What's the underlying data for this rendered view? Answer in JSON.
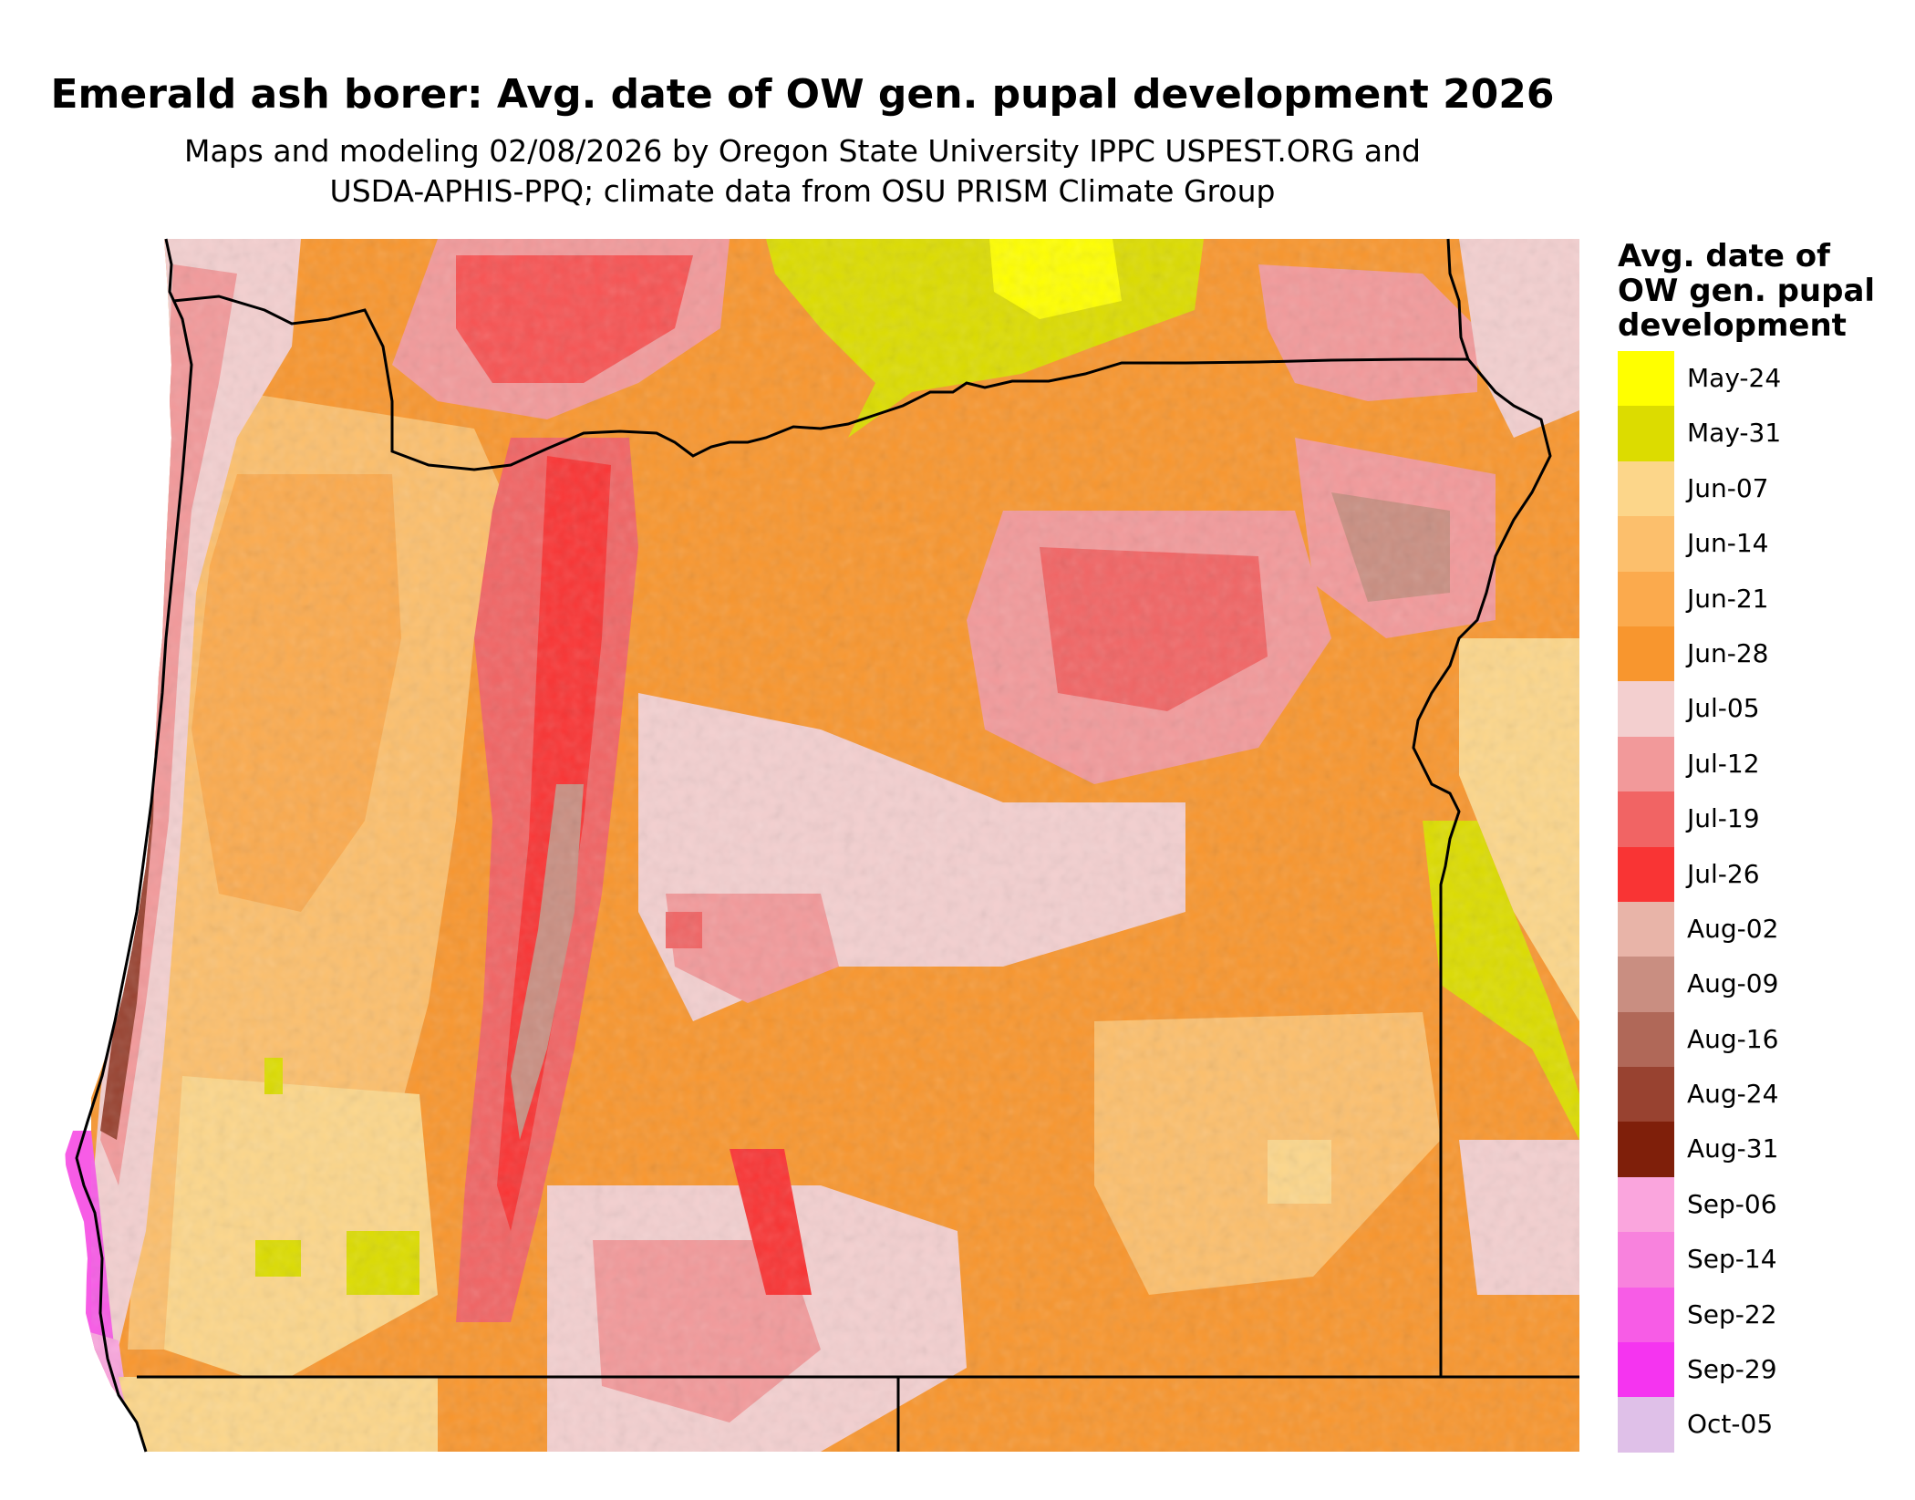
{
  "title": "Emerald ash borer: Avg. date of OW gen. pupal development 2026",
  "subtitle": {
    "line1": "Maps and modeling 02/08/2026 by Oregon State University IPPC USPEST.ORG and",
    "line2": "USDA-APHIS-PPQ; climate data from OSU PRISM Climate Group"
  },
  "legend": {
    "title_lines": [
      "Avg. date of",
      "OW gen. pupal",
      "development"
    ],
    "items": [
      {
        "label": "May-24",
        "color": "#FFFF00"
      },
      {
        "label": "May-31",
        "color": "#DCDC00"
      },
      {
        "label": "Jun-07",
        "color": "#FCD68A"
      },
      {
        "label": "Jun-14",
        "color": "#FCBF6C"
      },
      {
        "label": "Jun-21",
        "color": "#FBAA4D"
      },
      {
        "label": "Jun-28",
        "color": "#F8962E"
      },
      {
        "label": "Jul-05",
        "color": "#F3CFCF"
      },
      {
        "label": "Jul-12",
        "color": "#F2999A"
      },
      {
        "label": "Jul-19",
        "color": "#F16464"
      },
      {
        "label": "Jul-26",
        "color": "#F93434"
      },
      {
        "label": "Aug-02",
        "color": "#E8B4A8"
      },
      {
        "label": "Aug-09",
        "color": "#C98E81"
      },
      {
        "label": "Aug-16",
        "color": "#B06858"
      },
      {
        "label": "Aug-24",
        "color": "#984230"
      },
      {
        "label": "Aug-31",
        "color": "#7F1F0A"
      },
      {
        "label": "Sep-06",
        "color": "#FAA5DD"
      },
      {
        "label": "Sep-14",
        "color": "#F882DD"
      },
      {
        "label": "Sep-22",
        "color": "#F75CE6"
      },
      {
        "label": "Sep-29",
        "color": "#F534F0"
      },
      {
        "label": "Oct-05",
        "color": "#DFC0E8"
      }
    ]
  }
}
